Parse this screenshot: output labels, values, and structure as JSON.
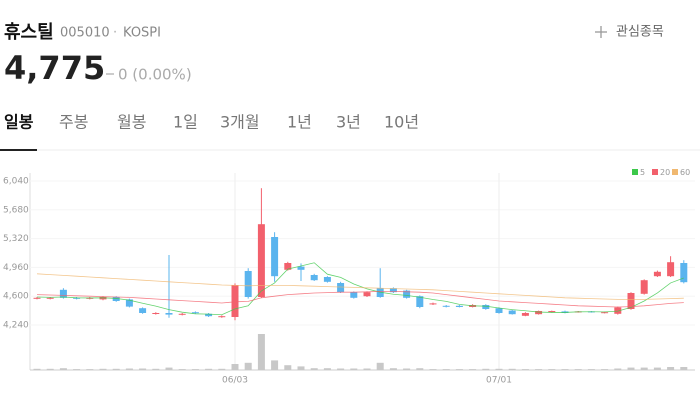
{
  "header": {
    "name": "휴스틸",
    "code": "005010",
    "separator": "·",
    "market": "KOSPI",
    "watch_button": "관심종목",
    "price": "4,775",
    "change": "0 (0.00%)"
  },
  "tabs": [
    "일봉",
    "주봉",
    "월봉",
    "1일",
    "3개월",
    "1년",
    "3년",
    "10년"
  ],
  "active_tab": 0,
  "chart_data": {
    "type": "candlestick",
    "categories": [
      null,
      null,
      null,
      null,
      null,
      null,
      null,
      null,
      null,
      null,
      null,
      null,
      null,
      null,
      null,
      "06/03",
      null,
      null,
      null,
      null,
      null,
      null,
      null,
      null,
      null,
      null,
      null,
      null,
      null,
      null,
      null,
      null,
      null,
      null,
      null,
      "07/01",
      null,
      null,
      null,
      null,
      null,
      null,
      null,
      null,
      null,
      null,
      null,
      null,
      null,
      null
    ],
    "open": [
      4570,
      4570,
      4680,
      4580,
      4570,
      4560,
      4590,
      4560,
      4450,
      4380,
      4390,
      4370,
      4400,
      4380,
      4340,
      4340,
      4915,
      4590,
      5340,
      4930,
      4970,
      4865,
      4840,
      4765,
      4650,
      4600,
      4700,
      4700,
      4670,
      4600,
      4500,
      4480,
      4480,
      4465,
      4490,
      4450,
      4420,
      4355,
      4375,
      4400,
      4410,
      4400,
      4410,
      4390,
      4380,
      4440,
      4630,
      4850,
      4850,
      5015
    ],
    "high": [
      4590,
      4590,
      4700,
      4590,
      4590,
      4600,
      4600,
      4570,
      4460,
      4400,
      5115,
      4390,
      4410,
      4390,
      4360,
      4760,
      4950,
      5950,
      5400,
      5030,
      5010,
      4880,
      4850,
      4780,
      4660,
      4660,
      4950,
      4710,
      4680,
      4610,
      4520,
      4490,
      4490,
      4500,
      4500,
      4460,
      4430,
      4400,
      4420,
      4420,
      4420,
      4415,
      4415,
      4405,
      4470,
      4650,
      4810,
      4920,
      5100,
      5050
    ],
    "low": [
      4560,
      4560,
      4570,
      4560,
      4560,
      4550,
      4530,
      4460,
      4380,
      4370,
      4330,
      4360,
      4380,
      4340,
      4330,
      4300,
      4570,
      4580,
      4780,
      4920,
      4790,
      4790,
      4770,
      4640,
      4570,
      4590,
      4580,
      4640,
      4570,
      4450,
      4490,
      4460,
      4460,
      4460,
      4430,
      4380,
      4370,
      4350,
      4370,
      4395,
      4385,
      4395,
      4395,
      4385,
      4370,
      4430,
      4620,
      4840,
      4840,
      4760
    ],
    "close": [
      4580,
      4580,
      4580,
      4570,
      4580,
      4590,
      4540,
      4470,
      4390,
      4390,
      4370,
      4380,
      4390,
      4350,
      4350,
      4740,
      4590,
      5500,
      4850,
      5015,
      4930,
      4800,
      4780,
      4650,
      4580,
      4650,
      4590,
      4650,
      4580,
      4465,
      4510,
      4470,
      4465,
      4490,
      4440,
      4390,
      4375,
      4390,
      4415,
      4415,
      4390,
      4410,
      4400,
      4400,
      4460,
      4640,
      4800,
      4905,
      5025,
      4775
    ],
    "volume": [
      20000,
      20000,
      30000,
      15000,
      15000,
      20000,
      20000,
      25000,
      25000,
      20000,
      40000,
      15000,
      15000,
      20000,
      20000,
      100000,
      120000,
      600000,
      160000,
      80000,
      60000,
      30000,
      30000,
      25000,
      25000,
      25000,
      120000,
      30000,
      25000,
      30000,
      15000,
      15000,
      15000,
      15000,
      20000,
      20000,
      20000,
      15000,
      15000,
      15000,
      15000,
      15000,
      15000,
      15000,
      25000,
      40000,
      40000,
      40000,
      50000,
      50000
    ],
    "up_color": "#f2606c",
    "down_color": "#5ab4ee",
    "volume_color": "#c8c8c8",
    "ylim": [
      4240,
      6040
    ],
    "yticks": [
      {
        "value": 4240,
        "label": "4,240"
      },
      {
        "value": 4600,
        "label": "4,600"
      },
      {
        "value": 4960,
        "label": "4,960"
      },
      {
        "value": 5320,
        "label": "5,320"
      },
      {
        "value": 5680,
        "label": "5,680"
      },
      {
        "value": 6040,
        "label": "6,040"
      }
    ],
    "series": [
      {
        "name": "5",
        "color": "#3cc84a",
        "values": [
          4590,
          4585,
          4590,
          4580,
          4578,
          4580,
          4572,
          4550,
          4512,
          4476,
          4432,
          4400,
          4380,
          4376,
          4368,
          4442,
          4480,
          4666,
          4766,
          4939,
          4977,
          5018,
          4875,
          4835,
          4752,
          4692,
          4650,
          4624,
          4610,
          4587,
          4559,
          4535,
          4498,
          4480,
          4475,
          4453,
          4432,
          4418,
          4402,
          4397,
          4397,
          4405,
          4406,
          4404,
          4413,
          4460,
          4540,
          4641,
          4766,
          4827
        ]
      },
      {
        "name": "20",
        "color": "#f2606c",
        "values": [
          4620,
          4615,
          4610,
          4605,
          4600,
          4595,
          4590,
          4585,
          4575,
          4565,
          4555,
          4545,
          4535,
          4525,
          4515,
          4530,
          4535,
          4580,
          4600,
          4620,
          4630,
          4640,
          4645,
          4650,
          4650,
          4655,
          4660,
          4660,
          4655,
          4650,
          4640,
          4620,
          4600,
          4580,
          4560,
          4540,
          4530,
          4520,
          4510,
          4500,
          4490,
          4480,
          4475,
          4470,
          4465,
          4470,
          4480,
          4495,
          4510,
          4520
        ]
      },
      {
        "name": "60",
        "color": "#f0b870",
        "values": [
          4880,
          4870,
          4860,
          4850,
          4840,
          4830,
          4820,
          4810,
          4800,
          4790,
          4780,
          4770,
          4760,
          4750,
          4740,
          4735,
          4730,
          4735,
          4735,
          4735,
          4730,
          4725,
          4720,
          4715,
          4710,
          4705,
          4700,
          4695,
          4690,
          4685,
          4680,
          4670,
          4660,
          4650,
          4640,
          4630,
          4620,
          4610,
          4600,
          4590,
          4580,
          4575,
          4570,
          4565,
          4560,
          4560,
          4560,
          4565,
          4570,
          4575
        ]
      }
    ]
  }
}
